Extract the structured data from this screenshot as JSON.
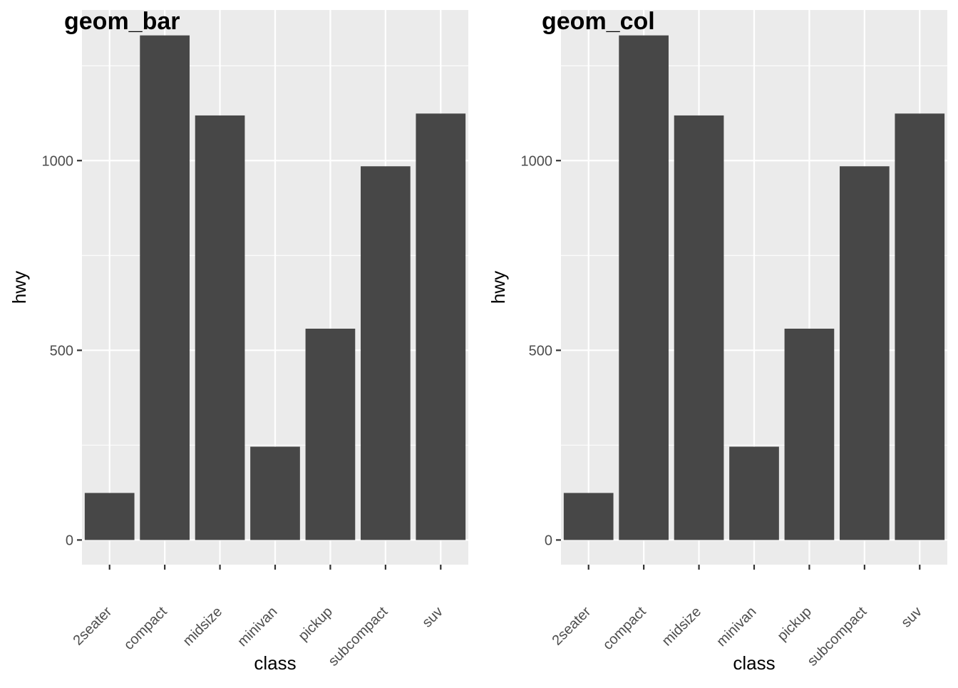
{
  "chart_data": [
    {
      "type": "bar",
      "title": "geom_bar",
      "xlabel": "class",
      "ylabel": "hwy",
      "categories": [
        "2seater",
        "compact",
        "midsize",
        "minivan",
        "pickup",
        "subcompact",
        "suv"
      ],
      "values": [
        124,
        1330,
        1119,
        246,
        557,
        985,
        1124
      ],
      "y_ticks": [
        0,
        500,
        1000
      ],
      "y_tick_labels": [
        "0",
        "500",
        "1000"
      ],
      "ylim": [
        -65,
        1397
      ],
      "grid": true,
      "colors": {
        "panel": "#ebebeb",
        "bar": "#474747",
        "grid": "#ffffff",
        "tick": "#333333"
      }
    },
    {
      "type": "bar",
      "title": "geom_col",
      "xlabel": "class",
      "ylabel": "hwy",
      "categories": [
        "2seater",
        "compact",
        "midsize",
        "minivan",
        "pickup",
        "subcompact",
        "suv"
      ],
      "values": [
        124,
        1330,
        1119,
        246,
        557,
        985,
        1124
      ],
      "y_ticks": [
        0,
        500,
        1000
      ],
      "y_tick_labels": [
        "0",
        "500",
        "1000"
      ],
      "ylim": [
        -65,
        1397
      ],
      "grid": true,
      "colors": {
        "panel": "#ebebeb",
        "bar": "#474747",
        "grid": "#ffffff",
        "tick": "#333333"
      }
    }
  ]
}
